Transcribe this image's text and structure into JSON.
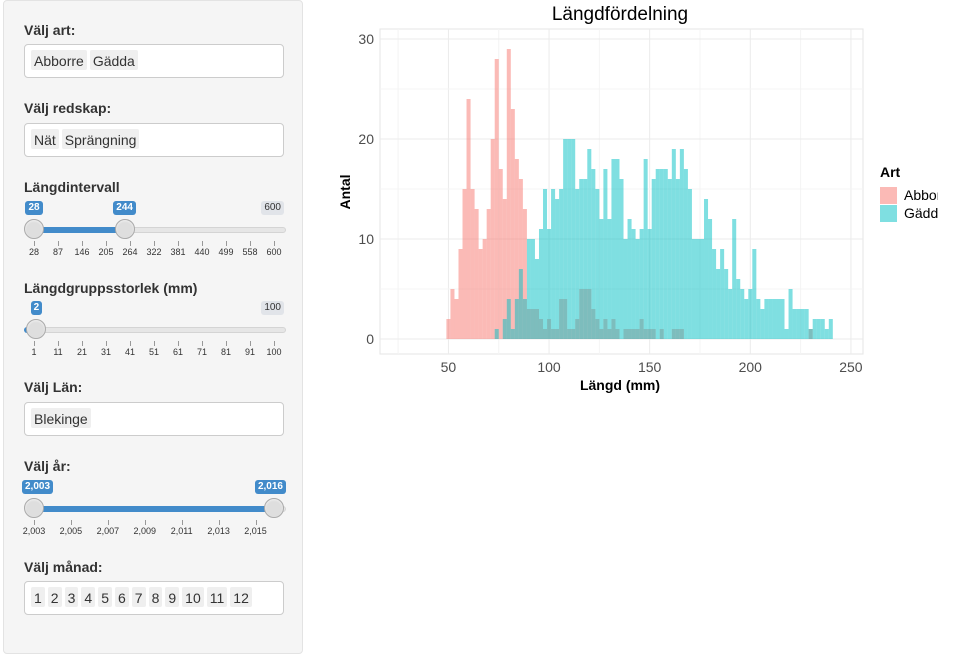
{
  "sidebar": {
    "species": {
      "label": "Välj art:",
      "selected": [
        "Abborre",
        "Gädda"
      ]
    },
    "gear": {
      "label": "Välj redskap:",
      "selected": [
        "Nät",
        "Sprängning"
      ]
    },
    "length_range": {
      "label": "Längdintervall",
      "min": 28,
      "max": 600,
      "from": 28,
      "to": 244,
      "min_label": "28",
      "from_label": "28",
      "to_label": "244",
      "max_label": "600",
      "ticks": [
        "28",
        "87",
        "146",
        "205",
        "264",
        "322",
        "381",
        "440",
        "499",
        "558",
        "600"
      ]
    },
    "bin_size": {
      "label": "Längdgruppsstorlek (mm)",
      "min": 1,
      "max": 100,
      "value": 2,
      "value_label": "2",
      "max_label": "100",
      "ticks": [
        "1",
        "11",
        "21",
        "31",
        "41",
        "51",
        "61",
        "71",
        "81",
        "91",
        "100"
      ]
    },
    "county": {
      "label": "Välj Län:",
      "selected": [
        "Blekinge"
      ]
    },
    "year": {
      "label": "Välj år:",
      "min": 2003,
      "max": 2016,
      "from": 2003,
      "to": 2016,
      "from_label": "2,003",
      "to_label": "2,016",
      "ticks": [
        "2,003",
        "2,005",
        "2,007",
        "2,009",
        "2,011",
        "2,013",
        "2,015"
      ]
    },
    "month": {
      "label": "Välj månad:",
      "selected": [
        "1",
        "2",
        "3",
        "4",
        "5",
        "6",
        "7",
        "8",
        "9",
        "10",
        "11",
        "12"
      ]
    }
  },
  "chart_data": {
    "type": "bar",
    "title": "Längdfördelning",
    "xlabel": "Längd (mm)",
    "ylabel": "Antal",
    "xlim": [
      16,
      256
    ],
    "ylim": [
      -1.5,
      31
    ],
    "xticks": [
      50,
      100,
      150,
      200,
      250
    ],
    "yticks": [
      0,
      10,
      20,
      30
    ],
    "bin_width": 2,
    "grid": true,
    "legend": {
      "title": "Art",
      "position": "right"
    },
    "colors": {
      "Abborre": "#F8766D",
      "Gädda": "#00BFC4"
    },
    "series": [
      {
        "name": "Abborre",
        "x": [
          50,
          52,
          54,
          56,
          58,
          60,
          62,
          64,
          66,
          68,
          70,
          72,
          74,
          76,
          78,
          80,
          82,
          84,
          86,
          88,
          90,
          92,
          94,
          96,
          98,
          100,
          102,
          104,
          106,
          108,
          110,
          112,
          114,
          116,
          118,
          120,
          122,
          124,
          126,
          128,
          130,
          132,
          134,
          136,
          138,
          140,
          142,
          144,
          146,
          148,
          150,
          152,
          154,
          156,
          158,
          160,
          162,
          164,
          166,
          168,
          170,
          172,
          174,
          176,
          178,
          180,
          182,
          184,
          186,
          188,
          190,
          192,
          194,
          196,
          198,
          200,
          202,
          204,
          206,
          208,
          210,
          212,
          214,
          216,
          218,
          220,
          222,
          224,
          226,
          228,
          230
        ],
        "values": [
          2,
          5,
          4,
          9,
          15,
          24,
          15,
          13,
          9,
          10,
          13,
          20,
          28,
          17,
          14,
          29,
          23,
          18,
          16,
          13,
          3,
          3,
          3,
          2,
          1,
          2,
          1,
          1,
          4,
          4,
          1,
          1,
          2,
          5,
          5,
          5,
          3,
          2,
          1,
          2,
          1,
          2,
          1,
          0,
          1,
          1,
          1,
          1,
          2,
          1,
          1,
          1,
          0,
          1,
          0,
          0,
          1,
          1,
          1,
          0,
          0,
          0,
          0,
          0,
          0,
          0,
          0,
          0,
          0,
          0,
          0,
          0,
          0,
          0,
          0,
          0,
          0,
          0,
          0,
          0,
          0,
          0,
          0,
          0,
          0,
          0,
          0,
          0,
          0,
          0,
          1
        ]
      },
      {
        "name": "Gädda",
        "x": [
          74,
          76,
          78,
          80,
          82,
          84,
          86,
          88,
          90,
          92,
          94,
          96,
          98,
          100,
          102,
          104,
          106,
          108,
          110,
          112,
          114,
          116,
          118,
          120,
          122,
          124,
          126,
          128,
          130,
          132,
          134,
          136,
          138,
          140,
          142,
          144,
          146,
          148,
          150,
          152,
          154,
          156,
          158,
          160,
          162,
          164,
          166,
          168,
          170,
          172,
          174,
          176,
          178,
          180,
          182,
          184,
          186,
          188,
          190,
          192,
          194,
          196,
          198,
          200,
          202,
          204,
          206,
          208,
          210,
          212,
          214,
          216,
          218,
          220,
          222,
          224,
          226,
          228,
          230,
          232,
          234,
          236,
          238,
          240
        ],
        "values": [
          1,
          0,
          2,
          4,
          1,
          4,
          7,
          4,
          10,
          10,
          8,
          11,
          15,
          11,
          15,
          14,
          15,
          20,
          20,
          20,
          15,
          16,
          16,
          19,
          17,
          15,
          12,
          17,
          12,
          18,
          18,
          16,
          10,
          12,
          11,
          10,
          11,
          18,
          11,
          16,
          17,
          17,
          17,
          16,
          19,
          16,
          19,
          17,
          15,
          10,
          10,
          10,
          14,
          12,
          9,
          7,
          9,
          7,
          5,
          12,
          6,
          5,
          4,
          5,
          9,
          4,
          3,
          4,
          4,
          4,
          4,
          4,
          1,
          5,
          3,
          3,
          3,
          3,
          1,
          2,
          2,
          2,
          1,
          2
        ]
      }
    ]
  }
}
